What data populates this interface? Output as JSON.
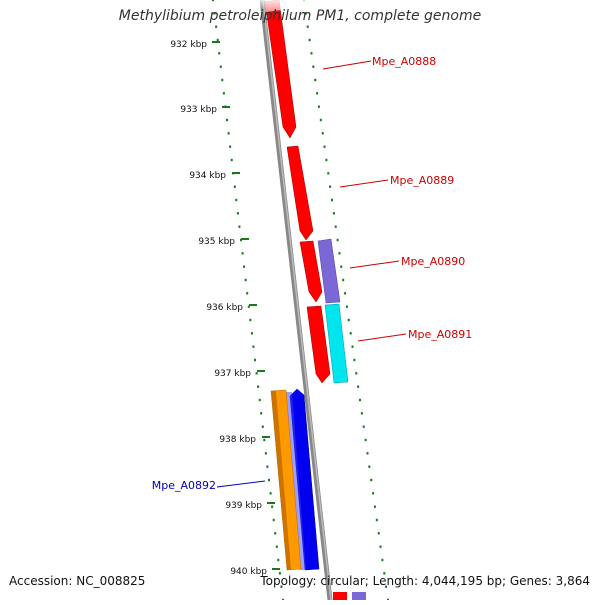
{
  "title": "Methylibium petroleiphilum PM1, complete genome",
  "footer": {
    "accession": "Accession: NC_008825",
    "topology": "Topology: circular; Length: 4,044,195 bp; Genes: 3,864"
  },
  "ticks": [
    {
      "label": "932 kbp"
    },
    {
      "label": "933 kbp"
    },
    {
      "label": "934 kbp"
    },
    {
      "label": "935 kbp"
    },
    {
      "label": "936 kbp"
    },
    {
      "label": "937 kbp"
    },
    {
      "label": "938 kbp"
    },
    {
      "label": "939 kbp"
    },
    {
      "label": "940 kbp"
    }
  ],
  "genes": [
    {
      "label": "Mpe_A0888",
      "color": "#cc0000"
    },
    {
      "label": "Mpe_A0889",
      "color": "#cc0000"
    },
    {
      "label": "Mpe_A0890",
      "color": "#cc0000"
    },
    {
      "label": "Mpe_A0891",
      "color": "#cc0000"
    },
    {
      "label": "Mpe_A0892",
      "color": "#0000bb"
    }
  ],
  "colors": {
    "backbone": "#888888",
    "tick_dots": "#1a7a1a",
    "gene_red": "#ff0000",
    "gene_purple": "#7b68d6",
    "gene_cyan": "#00e5ee",
    "gene_orange": "#ff9900",
    "gene_blue": "#0000ee"
  }
}
